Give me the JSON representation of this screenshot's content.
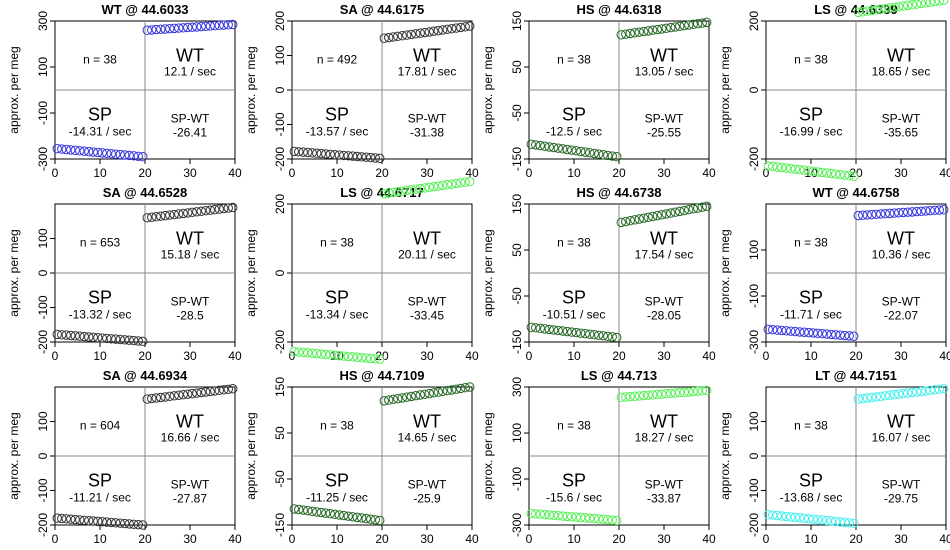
{
  "chart_data": [
    {
      "type": "scatter",
      "title": "WT @ 44.6033",
      "ylabel": "approx. per meg",
      "ylim": [
        -300,
        300
      ],
      "yticks": [
        -300,
        -100,
        100,
        300
      ],
      "xlim": [
        0,
        40
      ],
      "xticks": [
        0,
        10,
        20,
        30,
        40
      ],
      "n_label": "n = 38",
      "wt_label": "WT",
      "wt_rate": "12.1 / sec",
      "sp_label": "SP",
      "sp_rate": "-14.31 / sec",
      "diff_label": "SP-WT",
      "diff_value": "-26.41",
      "sp_range": [
        -255,
        -290
      ],
      "wt_range": [
        260,
        285
      ],
      "color": "#3333dd"
    },
    {
      "type": "scatter",
      "title": "SA @ 44.6175",
      "ylabel": "approx. per meg",
      "ylim": [
        -200,
        200
      ],
      "yticks": [
        -200,
        -100,
        0,
        100,
        200
      ],
      "xlim": [
        0,
        40
      ],
      "xticks": [
        0,
        10,
        20,
        30,
        40
      ],
      "n_label": "n = 492",
      "wt_label": "WT",
      "wt_rate": "17.81 / sec",
      "sp_label": "SP",
      "sp_rate": "-13.57 / sec",
      "diff_label": "SP-WT",
      "diff_value": "-31.38",
      "sp_range": [
        -178,
        -198
      ],
      "wt_range": [
        150,
        185
      ],
      "color": "#333333"
    },
    {
      "type": "scatter",
      "title": "HS @ 44.6318",
      "ylabel": "approx. per meg",
      "ylim": [
        -150,
        150
      ],
      "yticks": [
        -150,
        -50,
        50,
        150
      ],
      "xlim": [
        0,
        40
      ],
      "xticks": [
        0,
        10,
        20,
        30,
        40
      ],
      "n_label": "n = 38",
      "wt_label": "WT",
      "wt_rate": "13.05 / sec",
      "sp_label": "SP",
      "sp_rate": "-12.5 / sec",
      "diff_label": "SP-WT",
      "diff_value": "-25.55",
      "sp_range": [
        -118,
        -145
      ],
      "wt_range": [
        120,
        147
      ],
      "color": "#226622"
    },
    {
      "type": "scatter",
      "title": "LS @ 44.6339",
      "ylabel": "approx. per meg",
      "ylim": [
        -200,
        200
      ],
      "yticks": [
        -200,
        0,
        200
      ],
      "xlim": [
        0,
        40
      ],
      "xticks": [
        0,
        10,
        20,
        30,
        40
      ],
      "n_label": "n = 38",
      "wt_label": "WT",
      "wt_rate": "18.65 / sec",
      "sp_label": "SP",
      "sp_rate": "-16.99 / sec",
      "diff_label": "SP-WT",
      "diff_value": "-35.65",
      "sp_range": [
        -220,
        -250
      ],
      "wt_range": [
        225,
        260
      ],
      "color": "#55ee55"
    },
    {
      "type": "scatter",
      "title": "SA @ 44.6528",
      "ylabel": "approx. per meg",
      "ylim": [
        -200,
        200
      ],
      "yticks": [
        -200,
        -100,
        0,
        100
      ],
      "xlim": [
        0,
        40
      ],
      "xticks": [
        0,
        10,
        20,
        30,
        40
      ],
      "n_label": "n = 653",
      "wt_label": "WT",
      "wt_rate": "15.18 / sec",
      "sp_label": "SP",
      "sp_rate": "-13.32 / sec",
      "diff_label": "SP-WT",
      "diff_value": "-28.5",
      "sp_range": [
        -178,
        -198
      ],
      "wt_range": [
        160,
        190
      ],
      "color": "#333333"
    },
    {
      "type": "scatter",
      "title": "LS @ 44.6717",
      "ylabel": "approx. per meg",
      "ylim": [
        -200,
        200
      ],
      "yticks": [
        -200,
        0,
        200
      ],
      "xlim": [
        0,
        40
      ],
      "xticks": [
        0,
        10,
        20,
        30,
        40
      ],
      "n_label": "n = 38",
      "wt_label": "WT",
      "wt_rate": "20.11 / sec",
      "sp_label": "SP",
      "sp_rate": "-13.34 / sec",
      "diff_label": "SP-WT",
      "diff_value": "-33.45",
      "sp_range": [
        -228,
        -250
      ],
      "wt_range": [
        230,
        265
      ],
      "color": "#55ee55"
    },
    {
      "type": "scatter",
      "title": "HS @ 44.6738",
      "ylabel": "approx. per meg",
      "ylim": [
        -150,
        150
      ],
      "yticks": [
        -150,
        -50,
        50,
        150
      ],
      "xlim": [
        0,
        40
      ],
      "xticks": [
        0,
        10,
        20,
        30,
        40
      ],
      "n_label": "n = 38",
      "wt_label": "WT",
      "wt_rate": "17.54 / sec",
      "sp_label": "SP",
      "sp_rate": "-10.51 / sec",
      "diff_label": "SP-WT",
      "diff_value": "-28.05",
      "sp_range": [
        -118,
        -140
      ],
      "wt_range": [
        110,
        145
      ],
      "color": "#226622"
    },
    {
      "type": "scatter",
      "title": "WT @ 44.6758",
      "ylabel": "approx. per meg",
      "ylim": [
        -300,
        300
      ],
      "yticks": [
        -300,
        -100,
        100
      ],
      "xlim": [
        0,
        40
      ],
      "xticks": [
        0,
        10,
        20,
        30,
        40
      ],
      "n_label": "n = 38",
      "wt_label": "WT",
      "wt_rate": "10.36 / sec",
      "sp_label": "SP",
      "sp_rate": "-11.71 / sec",
      "diff_label": "SP-WT",
      "diff_value": "-22.07",
      "sp_range": [
        -245,
        -275
      ],
      "wt_range": [
        250,
        275
      ],
      "color": "#3333dd"
    },
    {
      "type": "scatter",
      "title": "SA @ 44.6934",
      "ylabel": "approx. per meg",
      "ylim": [
        -200,
        200
      ],
      "yticks": [
        -200,
        -100,
        0,
        100
      ],
      "xlim": [
        0,
        40
      ],
      "xticks": [
        0,
        10,
        20,
        30,
        40
      ],
      "n_label": "n = 604",
      "wt_label": "WT",
      "wt_rate": "16.66 / sec",
      "sp_label": "SP",
      "sp_rate": "-11.21 / sec",
      "diff_label": "SP-WT",
      "diff_value": "-27.87",
      "sp_range": [
        -180,
        -200
      ],
      "wt_range": [
        165,
        195
      ],
      "color": "#333333"
    },
    {
      "type": "scatter",
      "title": "HS @ 44.7109",
      "ylabel": "approx. per meg",
      "ylim": [
        -150,
        150
      ],
      "yticks": [
        -150,
        -50,
        50,
        150
      ],
      "xlim": [
        0,
        40
      ],
      "xticks": [
        0,
        10,
        20,
        30,
        40
      ],
      "n_label": "n = 38",
      "wt_label": "WT",
      "wt_rate": "14.65 / sec",
      "sp_label": "SP",
      "sp_rate": "-11.25 / sec",
      "diff_label": "SP-WT",
      "diff_value": "-25.9",
      "sp_range": [
        -115,
        -140
      ],
      "wt_range": [
        120,
        150
      ],
      "color": "#226622"
    },
    {
      "type": "scatter",
      "title": "LS @ 44.713",
      "ylabel": "approx. per meg",
      "ylim": [
        -300,
        300
      ],
      "yticks": [
        -300,
        -100,
        100,
        300
      ],
      "xlim": [
        0,
        40
      ],
      "xticks": [
        0,
        10,
        20,
        30,
        40
      ],
      "n_label": "n = 38",
      "wt_label": "WT",
      "wt_rate": "18.27 / sec",
      "sp_label": "SP",
      "sp_rate": "-15.6 / sec",
      "diff_label": "SP-WT",
      "diff_value": "-33.87",
      "sp_range": [
        -250,
        -280
      ],
      "wt_range": [
        255,
        285
      ],
      "color": "#55ee55"
    },
    {
      "type": "scatter",
      "title": "LT @ 44.7151",
      "ylabel": "approx. per meg",
      "ylim": [
        -200,
        200
      ],
      "yticks": [
        -200,
        -100,
        0,
        100
      ],
      "xlim": [
        0,
        40
      ],
      "xticks": [
        0,
        10,
        20,
        30,
        40
      ],
      "n_label": "n = 38",
      "wt_label": "WT",
      "wt_rate": "16.07 / sec",
      "sp_label": "SP",
      "sp_rate": "-13.68 / sec",
      "diff_label": "SP-WT",
      "diff_value": "-29.75",
      "sp_range": [
        -170,
        -195
      ],
      "wt_range": [
        165,
        195
      ],
      "color": "#44eeee"
    }
  ]
}
